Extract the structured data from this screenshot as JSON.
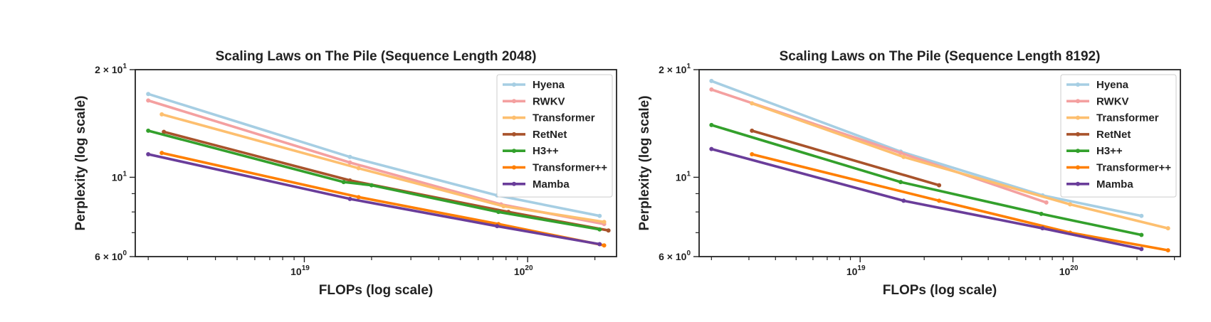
{
  "colors": {
    "Hyena": "#a6cee3",
    "RWKV": "#f4a0a0",
    "Transformer": "#fdbf6f",
    "RetNet": "#a8532b",
    "H3++": "#33a02c",
    "Transformer++": "#ff7f00",
    "Mamba": "#6a3d9a"
  },
  "ticks": {
    "y_top": "2 × 10",
    "y_top_exp": "1",
    "y_mid": "10",
    "y_mid_exp": "1",
    "y_bot": "6 × 10",
    "y_bot_exp": "0",
    "x1": "10",
    "x1_exp": "19",
    "x2": "10",
    "x2_exp": "20"
  },
  "chart_data": [
    {
      "type": "line",
      "title": "Scaling Laws on The Pile (Sequence Length 2048)",
      "xlabel": "FLOPs (log scale)",
      "ylabel": "Perplexity (log scale)",
      "xscale": "log",
      "yscale": "log",
      "xlim": [
        1.75e+18,
        2.5e+20
      ],
      "ylim": [
        6,
        20
      ],
      "legend": "top-right",
      "series": [
        {
          "name": "Hyena",
          "x": [
            2e+18,
            1.6e+19,
            7.3e+19,
            2.1e+20
          ],
          "y": [
            17.1,
            11.4,
            8.9,
            7.8
          ]
        },
        {
          "name": "RWKV",
          "x": [
            2e+18,
            1.6e+19,
            7.6e+19,
            2.2e+20
          ],
          "y": [
            16.4,
            11.0,
            8.4,
            7.4
          ]
        },
        {
          "name": "Transformer",
          "x": [
            2.3e+18,
            1.75e+19,
            7.8e+19,
            2.2e+20
          ],
          "y": [
            15.0,
            10.6,
            8.3,
            7.5
          ]
        },
        {
          "name": "RetNet",
          "x": [
            2.35e+18,
            1.6e+19,
            8.2e+19,
            2.3e+20
          ],
          "y": [
            13.4,
            9.8,
            8.0,
            7.1
          ]
        },
        {
          "name": "H3++",
          "x": [
            2e+18,
            1.5e+19,
            2e+19,
            7.4e+19,
            2.1e+20
          ],
          "y": [
            13.5,
            9.7,
            9.5,
            8.0,
            7.15
          ]
        },
        {
          "name": "Transformer++",
          "x": [
            2.3e+18,
            1.75e+19,
            7.4e+19,
            2.2e+20
          ],
          "y": [
            11.7,
            8.8,
            7.4,
            6.45
          ]
        },
        {
          "name": "Mamba",
          "x": [
            2e+18,
            1.6e+19,
            7.3e+19,
            2.1e+20
          ],
          "y": [
            11.6,
            8.7,
            7.3,
            6.5
          ]
        }
      ]
    },
    {
      "type": "line",
      "title": "Scaling Laws on The Pile (Sequence Length 8192)",
      "xlabel": "FLOPs (log scale)",
      "ylabel": "Perplexity (log scale)",
      "xscale": "log",
      "yscale": "log",
      "xlim": [
        1.75e+18,
        3.2e+20
      ],
      "ylim": [
        6,
        20
      ],
      "legend": "top-right",
      "series": [
        {
          "name": "Hyena",
          "x": [
            2e+18,
            1.55e+19,
            7.2e+19,
            2.1e+20
          ],
          "y": [
            18.6,
            11.8,
            8.9,
            7.8
          ]
        },
        {
          "name": "RWKV",
          "x": [
            2e+18,
            1.55e+19,
            7.5e+19
          ],
          "y": [
            17.6,
            11.7,
            8.5
          ]
        },
        {
          "name": "Transformer",
          "x": [
            3.1e+18,
            1.6e+19,
            9.7e+19,
            2.8e+20
          ],
          "y": [
            16.1,
            11.4,
            8.4,
            7.2
          ]
        },
        {
          "name": "RetNet",
          "x": [
            3.1e+18,
            2.35e+19
          ],
          "y": [
            13.5,
            9.5
          ]
        },
        {
          "name": "H3++",
          "x": [
            2e+18,
            1.55e+19,
            7.1e+19,
            2.1e+20
          ],
          "y": [
            14.0,
            9.7,
            7.9,
            6.9
          ]
        },
        {
          "name": "Transformer++",
          "x": [
            3.1e+18,
            2.35e+19,
            9.7e+19,
            2.8e+20
          ],
          "y": [
            11.6,
            8.6,
            7.0,
            6.25
          ]
        },
        {
          "name": "Mamba",
          "x": [
            2e+18,
            1.6e+19,
            7.2e+19,
            2.1e+20
          ],
          "y": [
            12.0,
            8.6,
            7.2,
            6.3
          ]
        }
      ]
    }
  ]
}
